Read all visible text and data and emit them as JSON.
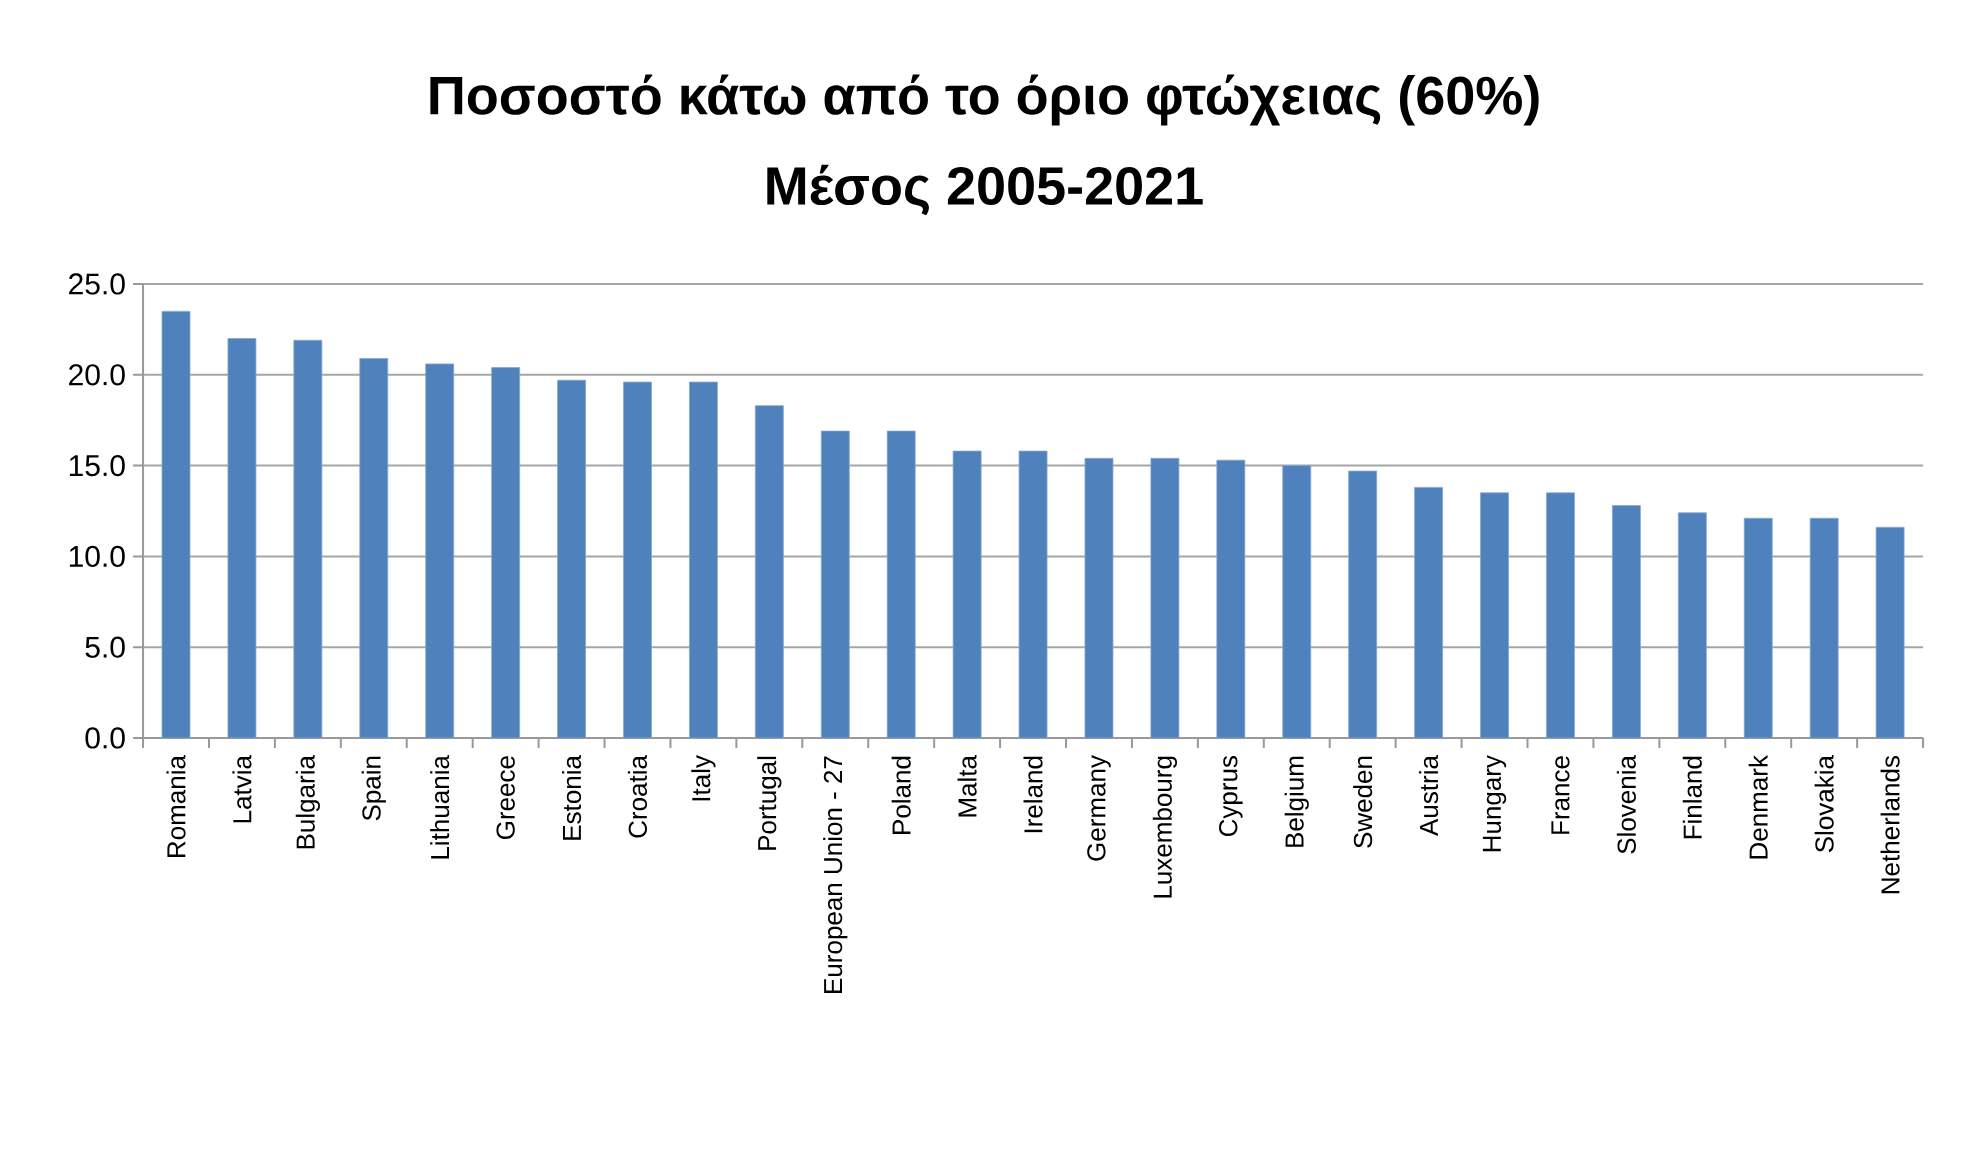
{
  "chart_data": {
    "type": "bar",
    "title": "Ποσοστό κάτω από το όριο φτώχειας (60%)",
    "subtitle": "Μέσος 2005-2021",
    "categories": [
      "Romania",
      "Latvia",
      "Bulgaria",
      "Spain",
      "Lithuania",
      "Greece",
      "Estonia",
      "Croatia",
      "Italy",
      "Portugal",
      "European Union - 27",
      "Poland",
      "Malta",
      "Ireland",
      "Germany",
      "Luxembourg",
      "Cyprus",
      "Belgium",
      "Sweden",
      "Austria",
      "Hungary",
      "France",
      "Slovenia",
      "Finland",
      "Denmark",
      "Slovakia",
      "Netherlands"
    ],
    "values": [
      23.5,
      22.0,
      21.9,
      20.9,
      20.6,
      20.4,
      19.7,
      19.6,
      19.6,
      18.3,
      16.9,
      16.9,
      15.8,
      15.8,
      15.4,
      15.4,
      15.3,
      15.0,
      14.7,
      13.8,
      13.5,
      13.5,
      12.8,
      12.4,
      12.1,
      12.1,
      11.6
    ],
    "color": "#4f81bd",
    "ylim": [
      0,
      25
    ],
    "yticks": [
      {
        "value": 0,
        "label": "0.0"
      },
      {
        "value": 5,
        "label": "5.0"
      },
      {
        "value": 10,
        "label": "10.0"
      },
      {
        "value": 15,
        "label": "15.0"
      },
      {
        "value": 20,
        "label": "20.0"
      },
      {
        "value": 25,
        "label": "25.0"
      }
    ],
    "grid": "y"
  }
}
